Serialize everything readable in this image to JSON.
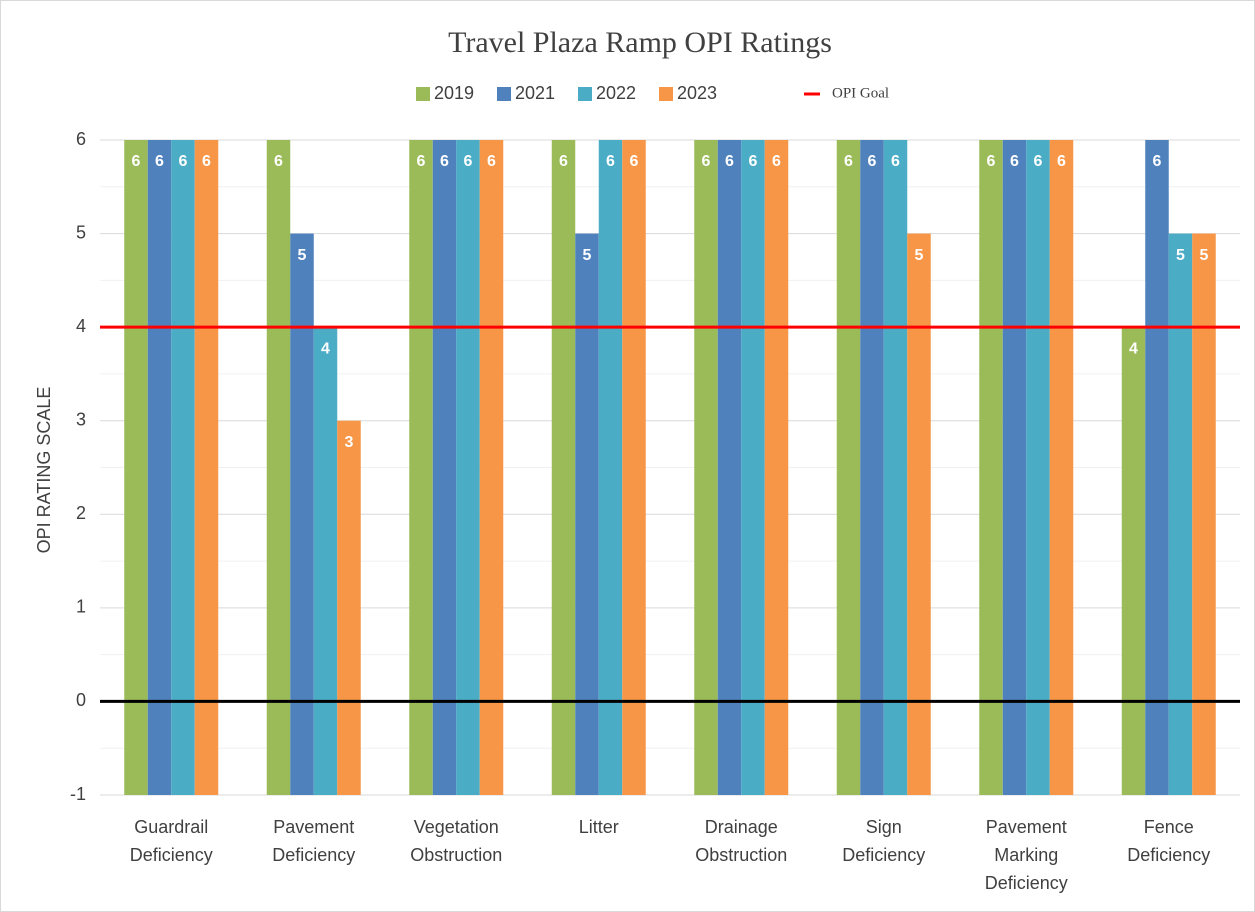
{
  "chart_data": {
    "type": "bar",
    "title": "Travel Plaza Ramp OPI Ratings",
    "y_label": "OPI RATING SCALE",
    "categories": [
      "Guardrail Deficiency",
      "Pavement Deficiency",
      "Vegetation Obstruction",
      "Litter",
      "Drainage Obstruction",
      "Sign Deficiency",
      "Pavement Marking Deficiency",
      "Fence Deficiency"
    ],
    "series": [
      {
        "name": "2019",
        "color": "#9bbb59",
        "values": [
          6,
          6,
          6,
          6,
          6,
          6,
          6,
          4
        ]
      },
      {
        "name": "2021",
        "color": "#4f81bd",
        "values": [
          6,
          5,
          6,
          5,
          6,
          6,
          6,
          6
        ]
      },
      {
        "name": "2022",
        "color": "#4bacc6",
        "values": [
          6,
          4,
          6,
          6,
          6,
          6,
          6,
          5
        ]
      },
      {
        "name": "2023",
        "color": "#f79646",
        "values": [
          6,
          3,
          6,
          6,
          6,
          5,
          6,
          5
        ]
      }
    ],
    "goal": {
      "name": "OPI Goal",
      "value": 4,
      "color": "#ff0000"
    },
    "ylim": [
      -1,
      6
    ],
    "yticks": [
      -1,
      0,
      1,
      2,
      3,
      4,
      5,
      6
    ],
    "grid": true
  }
}
